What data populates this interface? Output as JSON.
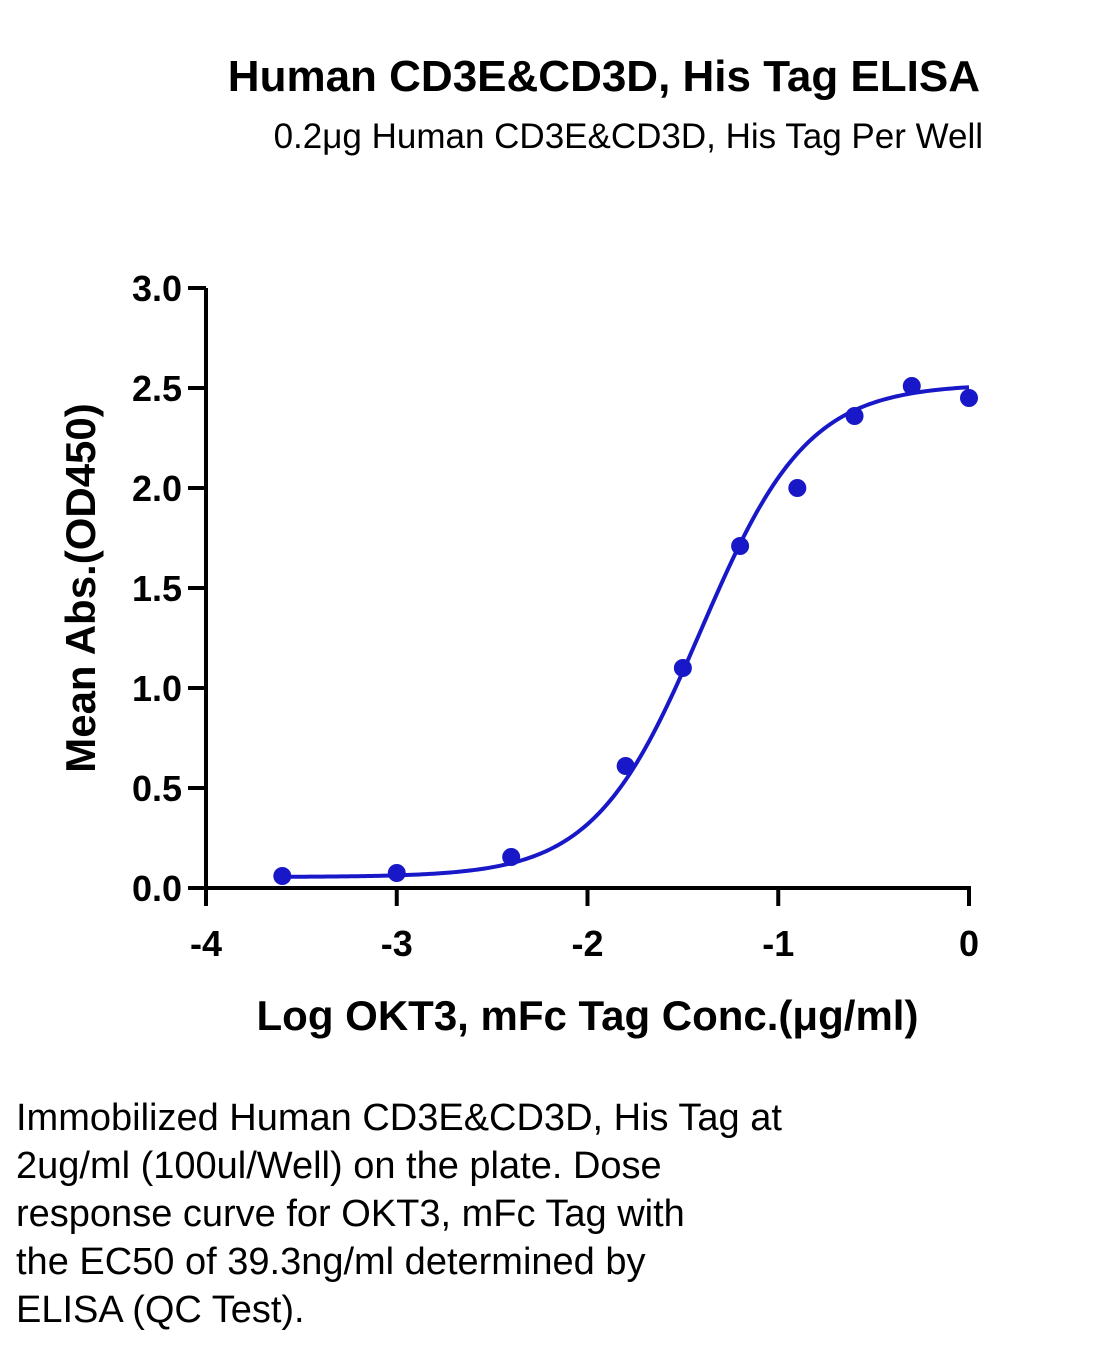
{
  "chart_data": {
    "type": "scatter",
    "title": "Human CD3E&CD3D, His Tag ELISA",
    "subtitle": "0.2μg Human CD3E&CD3D, His Tag Per Well",
    "xlabel": "Log OKT3, mFc Tag Conc.(μg/ml)",
    "ylabel": "Mean Abs.(OD450)",
    "xlim": [
      -4,
      0
    ],
    "ylim": [
      0,
      3
    ],
    "xticks": [
      "-4",
      "-3",
      "-2",
      "-1",
      "0"
    ],
    "yticks": [
      "0.0",
      "0.5",
      "1.0",
      "1.5",
      "2.0",
      "2.5",
      "3.0"
    ],
    "grid": false,
    "color": "#1818c8",
    "points": [
      {
        "x": -3.6,
        "y": 0.06
      },
      {
        "x": -3.0,
        "y": 0.075
      },
      {
        "x": -2.4,
        "y": 0.155
      },
      {
        "x": -1.8,
        "y": 0.61
      },
      {
        "x": -1.5,
        "y": 1.1
      },
      {
        "x": -1.2,
        "y": 1.71
      },
      {
        "x": -0.9,
        "y": 2.0
      },
      {
        "x": -0.6,
        "y": 2.36
      },
      {
        "x": -0.3,
        "y": 2.51
      },
      {
        "x": 0.0,
        "y": 2.45
      }
    ],
    "fit": {
      "model": "4PL",
      "bottom": 0.055,
      "top": 2.52,
      "logEC50": -1.406,
      "hill": 1.55
    }
  },
  "caption": [
    "Immobilized Human CD3E&CD3D, His Tag at",
    "2ug/ml (100ul/Well) on the plate. Dose",
    "response curve for OKT3, mFc Tag with",
    "the EC50 of 39.3ng/ml determined by",
    "ELISA (QC Test)."
  ]
}
